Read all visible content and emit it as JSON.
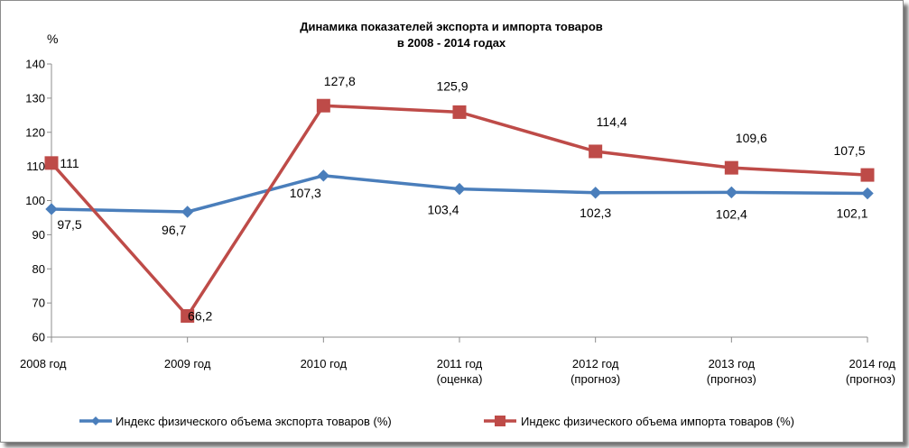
{
  "chart_data": {
    "type": "line",
    "title_lines": [
      "Динамика показателей экспорта и импорта товаров",
      "в 2008 - 2014 годах"
    ],
    "y_unit": "%",
    "ylim": [
      60,
      140
    ],
    "yticks": [
      60,
      70,
      80,
      90,
      100,
      110,
      120,
      130,
      140
    ],
    "categories": [
      [
        "2008 год"
      ],
      [
        "2009 год"
      ],
      [
        "2010 год"
      ],
      [
        "2011  год",
        "(оценка)"
      ],
      [
        "2012  год",
        "(прогноз)"
      ],
      [
        "2013  год",
        "(прогноз)"
      ],
      [
        "2014 год",
        "(прогноз)"
      ]
    ],
    "grid": false,
    "legend_position": "bottom",
    "series": [
      {
        "name": "Индекс физического объема экспорта товаров  (%)",
        "color": "#4a7ebb",
        "marker": "diamond",
        "values": [
          97.5,
          96.7,
          107.3,
          103.4,
          102.3,
          102.4,
          102.1
        ],
        "labels": [
          "97,5",
          "96,7",
          "107,3",
          "103,4",
          "102,3",
          "102,4",
          "102,1"
        ]
      },
      {
        "name": "Индекс физического объема импорта  товаров (%)",
        "color": "#be4b48",
        "marker": "square",
        "values": [
          111,
          66.2,
          127.8,
          125.9,
          114.4,
          109.6,
          107.5
        ],
        "labels": [
          "111",
          "66,2",
          "127,8",
          "125,9",
          "114,4",
          "109,6",
          "107,5"
        ]
      }
    ]
  }
}
